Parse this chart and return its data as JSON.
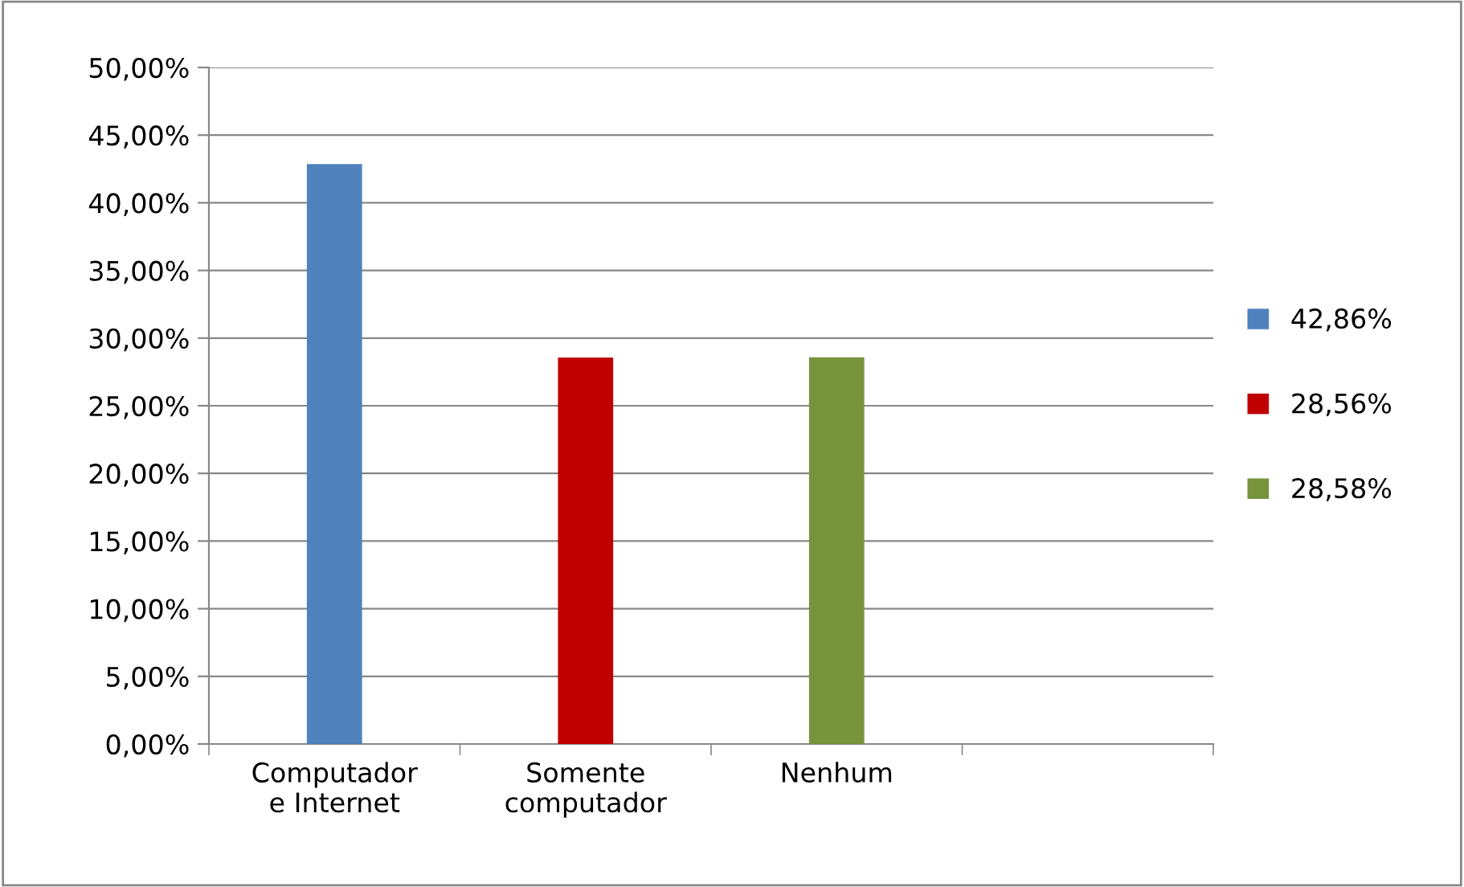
{
  "chart_data": {
    "type": "bar",
    "categories": [
      "Computador e Internet",
      "Somente computador",
      "Nenhum",
      null
    ],
    "series": [
      {
        "name": "42,86%",
        "color": "#4f81bd",
        "values": [
          42.86,
          null,
          null,
          null
        ]
      },
      {
        "name": "28,56%",
        "color": "#c00000",
        "values": [
          null,
          28.56,
          null,
          null
        ]
      },
      {
        "name": "28,58%",
        "color": "#77933c",
        "values": [
          null,
          null,
          28.58,
          null
        ]
      }
    ],
    "ylim": [
      0,
      50
    ],
    "yticks": [
      {
        "value": 0,
        "label": "0,00%"
      },
      {
        "value": 5,
        "label": "5,00%"
      },
      {
        "value": 10,
        "label": "10,00%"
      },
      {
        "value": 15,
        "label": "15,00%"
      },
      {
        "value": 20,
        "label": "20,00%"
      },
      {
        "value": 25,
        "label": "25,00%"
      },
      {
        "value": 30,
        "label": "30,00%"
      },
      {
        "value": 35,
        "label": "35,00%"
      },
      {
        "value": 40,
        "label": "40,00%"
      },
      {
        "value": 45,
        "label": "45,00%"
      },
      {
        "value": 50,
        "label": "50,00%"
      }
    ],
    "grid": "y",
    "legend": "right"
  }
}
